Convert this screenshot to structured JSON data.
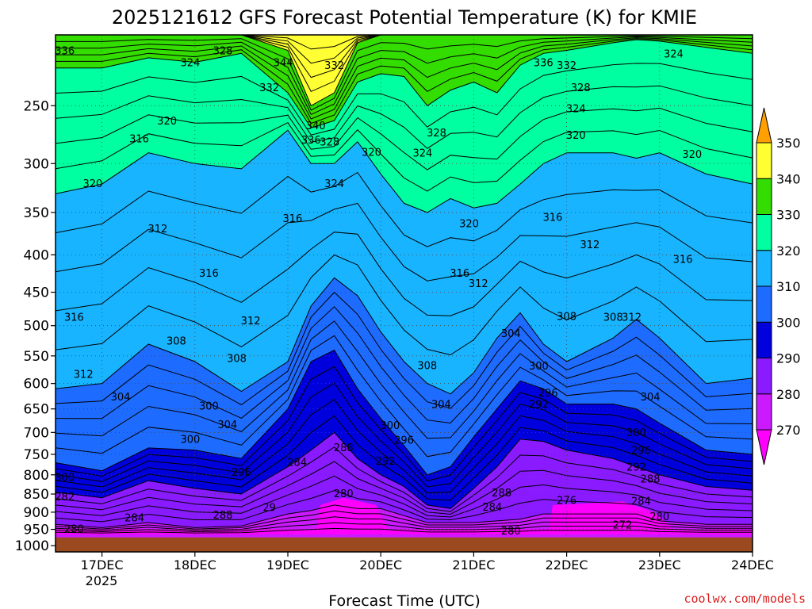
{
  "title": "2025121612 GFS Forecast Potential Temperature (K) for KMIE",
  "credit": "coolwx.com/models",
  "chart_data": {
    "type": "contour-time-height",
    "xlabel": "Forecast Time (UTC)",
    "x_ticks": [
      "17DEC",
      "18DEC",
      "19DEC",
      "20DEC",
      "21DEC",
      "22DEC",
      "23DEC",
      "24DEC"
    ],
    "x_year_label": "2025",
    "x_range_days": [
      16.5,
      24.0
    ],
    "y_ticks": [
      250,
      300,
      350,
      400,
      450,
      500,
      550,
      600,
      650,
      700,
      750,
      800,
      850,
      900,
      950,
      1000
    ],
    "y_range_hpa": [
      200,
      1020
    ],
    "y_scale": "log",
    "y_reversed": true,
    "ground_level_hpa": 960,
    "colorbar": {
      "levels": [
        270,
        280,
        290,
        300,
        310,
        320,
        330,
        340,
        350
      ],
      "colors": [
        "#ff00ff",
        "#cc1aff",
        "#8a1aff",
        "#0000dd",
        "#1e6bff",
        "#18b4ff",
        "#00ffa0",
        "#33dd00",
        "#ffff33",
        "#ffa000"
      ]
    },
    "grid": true,
    "times_day": [
      16.5,
      17.0,
      17.5,
      18.0,
      18.5,
      19.0,
      19.25,
      19.5,
      19.75,
      20.0,
      20.25,
      20.5,
      20.75,
      21.0,
      21.25,
      21.5,
      21.75,
      22.0,
      22.5,
      22.75,
      23.0,
      23.5,
      24.0
    ],
    "isentropes": [
      {
        "theta": 280,
        "p_hpa": [
          935,
          945,
          930,
          945,
          940,
          905,
          895,
          880,
          890,
          890,
          910,
          930,
          930,
          930,
          925,
          920,
          905,
          905,
          905,
          905,
          925,
          935,
          935
        ]
      },
      {
        "theta": 290,
        "p_hpa": [
          845,
          860,
          815,
          835,
          850,
          780,
          740,
          700,
          760,
          800,
          830,
          880,
          890,
          835,
          780,
          715,
          720,
          740,
          760,
          780,
          800,
          830,
          840
        ]
      },
      {
        "theta": 300,
        "p_hpa": [
          770,
          790,
          735,
          740,
          760,
          650,
          560,
          540,
          610,
          670,
          730,
          800,
          780,
          710,
          650,
          595,
          610,
          640,
          640,
          650,
          680,
          740,
          750
        ]
      },
      {
        "theta": 310,
        "p_hpa": [
          610,
          600,
          530,
          560,
          615,
          560,
          470,
          430,
          455,
          510,
          560,
          600,
          620,
          580,
          520,
          480,
          530,
          560,
          520,
          490,
          520,
          600,
          590
        ]
      },
      {
        "theta": 320,
        "p_hpa": [
          330,
          320,
          290,
          300,
          305,
          270,
          300,
          300,
          280,
          310,
          340,
          350,
          335,
          345,
          340,
          320,
          300,
          290,
          290,
          295,
          290,
          310,
          320
        ]
      },
      {
        "theta": 330,
        "p_hpa": [
          222,
          222,
          215,
          218,
          212,
          240,
          268,
          262,
          232,
          226,
          228,
          250,
          238,
          232,
          240,
          220,
          212,
          210,
          205,
          203,
          204,
          208,
          212
        ]
      },
      {
        "theta": 340,
        "p_hpa": [
          200,
          200,
          200,
          200,
          200,
          210,
          250,
          240,
          205,
          200,
          200,
          200,
          200,
          200,
          200,
          200,
          200,
          200,
          200,
          200,
          200,
          200,
          200
        ]
      }
    ],
    "contour_labels": [
      {
        "text": "336",
        "day": 16.6,
        "p": 210
      },
      {
        "text": "328",
        "day": 18.3,
        "p": 210
      },
      {
        "text": "324",
        "day": 17.95,
        "p": 218
      },
      {
        "text": "344",
        "day": 18.95,
        "p": 218
      },
      {
        "text": "332",
        "day": 19.5,
        "p": 220
      },
      {
        "text": "336",
        "day": 21.75,
        "p": 218
      },
      {
        "text": "332",
        "day": 22.0,
        "p": 220
      },
      {
        "text": "324",
        "day": 23.15,
        "p": 212
      },
      {
        "text": "332",
        "day": 18.8,
        "p": 236
      },
      {
        "text": "328",
        "day": 22.15,
        "p": 236
      },
      {
        "text": "324",
        "day": 22.1,
        "p": 252
      },
      {
        "text": "320",
        "day": 17.7,
        "p": 262
      },
      {
        "text": "340",
        "day": 19.3,
        "p": 266
      },
      {
        "text": "328",
        "day": 20.6,
        "p": 272
      },
      {
        "text": "320",
        "day": 22.1,
        "p": 274
      },
      {
        "text": "316",
        "day": 17.4,
        "p": 277
      },
      {
        "text": "336",
        "day": 19.25,
        "p": 278
      },
      {
        "text": "328",
        "day": 19.45,
        "p": 280
      },
      {
        "text": "324",
        "day": 20.45,
        "p": 290
      },
      {
        "text": "320",
        "day": 19.9,
        "p": 289
      },
      {
        "text": "320",
        "day": 23.35,
        "p": 291
      },
      {
        "text": "320",
        "day": 16.9,
        "p": 319
      },
      {
        "text": "324",
        "day": 19.5,
        "p": 319
      },
      {
        "text": "316",
        "day": 21.85,
        "p": 355
      },
      {
        "text": "316",
        "day": 19.05,
        "p": 356
      },
      {
        "text": "320",
        "day": 20.95,
        "p": 362
      },
      {
        "text": "312",
        "day": 17.6,
        "p": 368
      },
      {
        "text": "312",
        "day": 22.25,
        "p": 387
      },
      {
        "text": "316",
        "day": 23.25,
        "p": 405
      },
      {
        "text": "316",
        "day": 18.15,
        "p": 423
      },
      {
        "text": "316",
        "day": 20.85,
        "p": 423
      },
      {
        "text": "312",
        "day": 21.05,
        "p": 437
      },
      {
        "text": "316",
        "day": 16.7,
        "p": 486
      },
      {
        "text": "308",
        "day": 22.0,
        "p": 485
      },
      {
        "text": "308",
        "day": 22.5,
        "p": 486
      },
      {
        "text": "312",
        "day": 22.7,
        "p": 486
      },
      {
        "text": "312",
        "day": 18.6,
        "p": 492
      },
      {
        "text": "304",
        "day": 21.4,
        "p": 512
      },
      {
        "text": "308",
        "day": 17.8,
        "p": 524
      },
      {
        "text": "308",
        "day": 18.45,
        "p": 554
      },
      {
        "text": "312",
        "day": 16.8,
        "p": 582
      },
      {
        "text": "308",
        "day": 20.5,
        "p": 566
      },
      {
        "text": "300",
        "day": 21.7,
        "p": 567
      },
      {
        "text": "304",
        "day": 17.2,
        "p": 625
      },
      {
        "text": "296",
        "day": 21.8,
        "p": 617
      },
      {
        "text": "292",
        "day": 21.7,
        "p": 640
      },
      {
        "text": "304",
        "day": 22.9,
        "p": 625
      },
      {
        "text": "304",
        "day": 20.65,
        "p": 640
      },
      {
        "text": "300",
        "day": 18.15,
        "p": 643
      },
      {
        "text": "304",
        "day": 18.35,
        "p": 682
      },
      {
        "text": "300",
        "day": 20.1,
        "p": 684
      },
      {
        "text": "300",
        "day": 22.75,
        "p": 699
      },
      {
        "text": "300",
        "day": 17.95,
        "p": 714
      },
      {
        "text": "296",
        "day": 20.25,
        "p": 716
      },
      {
        "text": "296",
        "day": 22.8,
        "p": 740
      },
      {
        "text": "288",
        "day": 19.6,
        "p": 733
      },
      {
        "text": "292",
        "day": 20.05,
        "p": 765
      },
      {
        "text": "284",
        "day": 19.1,
        "p": 768
      },
      {
        "text": "292",
        "day": 22.75,
        "p": 780
      },
      {
        "text": "296",
        "day": 18.5,
        "p": 792
      },
      {
        "text": "300",
        "day": 16.6,
        "p": 805
      },
      {
        "text": "288",
        "day": 22.9,
        "p": 809
      },
      {
        "text": "280",
        "day": 19.6,
        "p": 848
      },
      {
        "text": "288",
        "day": 21.3,
        "p": 846
      },
      {
        "text": "282",
        "day": 16.6,
        "p": 856
      },
      {
        "text": "276",
        "day": 22.0,
        "p": 866
      },
      {
        "text": "284",
        "day": 22.8,
        "p": 868
      },
      {
        "text": "284",
        "day": 21.2,
        "p": 885
      },
      {
        "text": "29",
        "day": 18.8,
        "p": 886
      },
      {
        "text": "288",
        "day": 18.3,
        "p": 907
      },
      {
        "text": "284",
        "day": 17.35,
        "p": 915
      },
      {
        "text": "280",
        "day": 23.0,
        "p": 912
      },
      {
        "text": "272",
        "day": 22.6,
        "p": 936
      },
      {
        "text": "280",
        "day": 16.7,
        "p": 947
      },
      {
        "text": "280",
        "day": 21.4,
        "p": 953
      }
    ]
  }
}
